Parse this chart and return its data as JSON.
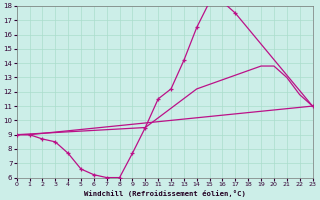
{
  "title": "",
  "xlabel": "Windchill (Refroidissement éolien,°C)",
  "ylabel": "",
  "bg_color": "#cceee8",
  "grid_color": "#aaddcc",
  "line_color": "#bb1188",
  "xmin": 0,
  "xmax": 23,
  "ymin": 6,
  "ymax": 18,
  "xticks": [
    0,
    1,
    2,
    3,
    4,
    5,
    6,
    7,
    8,
    9,
    10,
    11,
    12,
    13,
    14,
    15,
    16,
    17,
    18,
    19,
    20,
    21,
    22,
    23
  ],
  "yticks": [
    6,
    7,
    8,
    9,
    10,
    11,
    12,
    13,
    14,
    15,
    16,
    17,
    18
  ],
  "line1_x": [
    0,
    1,
    2,
    3,
    4,
    5,
    6,
    7,
    8,
    9,
    10,
    11,
    12,
    13,
    14,
    15,
    16,
    17,
    23
  ],
  "line1_y": [
    9.0,
    9.0,
    8.7,
    8.5,
    7.7,
    6.6,
    6.2,
    6.0,
    6.0,
    7.7,
    9.5,
    11.5,
    12.2,
    14.2,
    16.5,
    18.3,
    18.3,
    17.5,
    11.0
  ],
  "line2_x": [
    0,
    1,
    23
  ],
  "line2_y": [
    9.0,
    9.0,
    11.0
  ],
  "line3_x": [
    0,
    10,
    14,
    19,
    20,
    21,
    22,
    23
  ],
  "line3_y": [
    9.0,
    9.5,
    12.2,
    13.8,
    13.8,
    13.0,
    11.8,
    11.0
  ]
}
